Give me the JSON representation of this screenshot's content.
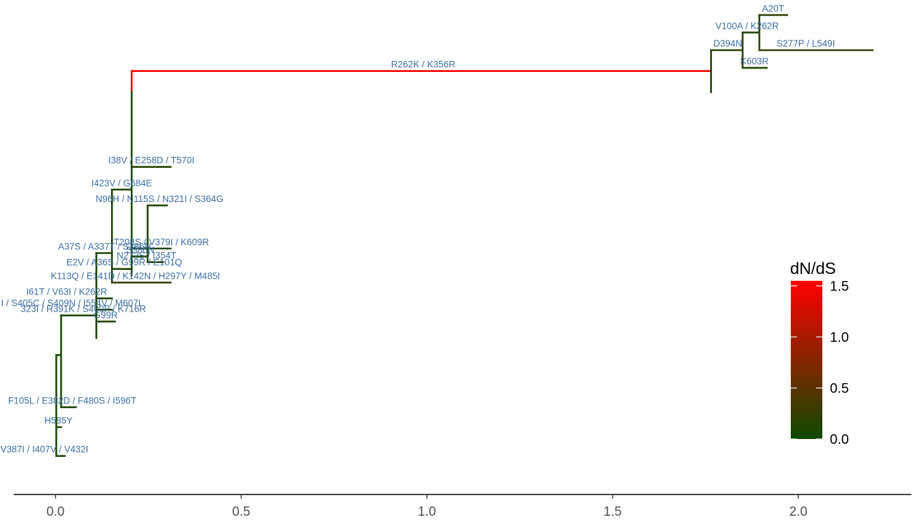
{
  "chart_data": {
    "type": "phylogenetic-tree",
    "x_ticks": [
      "0.0",
      "0.5",
      "1.0",
      "1.5",
      "2.0"
    ],
    "x_tick_values": [
      0.0,
      0.5,
      1.0,
      1.5,
      2.0
    ],
    "xlim": [
      -0.11,
      2.3
    ],
    "legend": {
      "title": "dN/dS",
      "ticks": [
        "1.5",
        "1.0",
        "0.5",
        "0.0"
      ],
      "tick_values": [
        1.5,
        1.0,
        0.5,
        0.0
      ],
      "range": [
        0,
        1.55
      ],
      "low_color": "#0d4a00",
      "high_color": "#ff0000",
      "placement": "right"
    },
    "tip_rows": 23,
    "segments": [
      {
        "id": "h_main",
        "x0": 0.205,
        "x1": 1.765,
        "y": 20.13,
        "dnds": 1.52,
        "label": "R262K / K356R",
        "label_x": 0.99
      },
      {
        "id": "v_root_upper",
        "x": 0.205,
        "y0": 19.2,
        "y1": 20.13,
        "dnds": 1.52
      },
      {
        "id": "v_root_lower",
        "x": 0.205,
        "y0": 11.1,
        "y1": 19.2,
        "dnds": 0.05
      },
      {
        "id": "v_clade",
        "x": 1.765,
        "y0": 19.2,
        "y1": 21.05,
        "dnds": 0.1
      },
      {
        "id": "h_d394n",
        "x0": 1.765,
        "x1": 1.85,
        "y": 21.05,
        "dnds": 0.18,
        "label": "D394N",
        "label_x": 1.81
      },
      {
        "id": "v_d394n",
        "x": 1.85,
        "y0": 20.27,
        "y1": 21.83,
        "dnds": 0.18
      },
      {
        "id": "h_k603r",
        "x0": 1.85,
        "x1": 1.915,
        "y": 20.27,
        "dnds": 0.1,
        "label": "K603R",
        "label_x": 1.882
      },
      {
        "id": "h_v100a",
        "x0": 1.85,
        "x1": 1.895,
        "y": 21.83,
        "dnds": 0.12,
        "label": "V100A / K262R",
        "label_x": 1.862
      },
      {
        "id": "v_v100a",
        "x": 1.895,
        "y0": 21.05,
        "y1": 22.6,
        "dnds": 0.12
      },
      {
        "id": "h_a20t",
        "x0": 1.895,
        "x1": 1.97,
        "y": 22.6,
        "dnds": 0.2,
        "label": "A20T",
        "label_x": 1.932
      },
      {
        "id": "h_s277p",
        "x0": 1.895,
        "x1": 2.2,
        "y": 21.05,
        "dnds": 0.28,
        "label": "S277P / L549I",
        "label_x": 2.02
      },
      {
        "id": "h_i38v",
        "x0": 0.205,
        "x1": 0.31,
        "y": 15.9,
        "dnds": 0.12,
        "label": "I38V / E258D / T570I",
        "label_x": 0.258
      },
      {
        "id": "h_i423v",
        "x0": 0.152,
        "x1": 0.205,
        "y": 14.9,
        "dnds": 0.1,
        "label": "I423V / G684E",
        "label_x": 0.178
      },
      {
        "id": "v_i423v",
        "x": 0.152,
        "y0": 10.8,
        "y1": 14.9,
        "dnds": 0.08
      },
      {
        "id": "h_n96h",
        "x0": 0.248,
        "x1": 0.3,
        "y": 14.2,
        "dnds": 0.15,
        "label": "N96H / N115S / N321I / S364G",
        "label_x": 0.28
      },
      {
        "id": "v_n96h",
        "x": 0.248,
        "y0": 11.7,
        "y1": 14.2,
        "dnds": 0.1
      },
      {
        "id": "h_t208s",
        "x0": 0.205,
        "x1": 0.31,
        "y": 12.3,
        "dnds": 0.12,
        "label": "T208S / V379I / K609R",
        "label_x": 0.285
      },
      {
        "id": "h_s386n",
        "x0": 0.205,
        "x1": 0.248,
        "y": 11.95,
        "dnds": 0.1,
        "label": "S386N",
        "label_x": 0.228
      },
      {
        "id": "h_n272s",
        "x0": 0.248,
        "x1": 0.29,
        "y": 11.7,
        "dnds": 0.12,
        "label": "N272S / I354T",
        "label_x": 0.245
      },
      {
        "id": "h_a37s",
        "x0": 0.11,
        "x1": 0.152,
        "y": 12.1,
        "dnds": 0.1,
        "label": "A37S / A337T / S386N",
        "label_x": 0.132
      },
      {
        "id": "v_a37s",
        "x": 0.11,
        "y0": 8.35,
        "y1": 12.1,
        "dnds": 0.08
      },
      {
        "id": "h_e2v",
        "x0": 0.152,
        "x1": 0.205,
        "y": 11.4,
        "dnds": 0.1,
        "label": "E2V / A36S / G99R / E101Q",
        "label_x": 0.185
      },
      {
        "id": "h_k113q",
        "x0": 0.152,
        "x1": 0.31,
        "y": 10.8,
        "dnds": 0.22,
        "label": "K113Q / E141D / K142N / H297Y / M485I",
        "label_x": 0.215
      },
      {
        "id": "h_i61t",
        "x0": 0.11,
        "x1": 0.152,
        "y": 10.1,
        "dnds": 0.1,
        "label": "I61T / V63I / K262R",
        "label_x": 0.03
      },
      {
        "id": "h_s405c",
        "x0": 0.11,
        "x1": 0.152,
        "y": 9.6,
        "dnds": 0.1,
        "label": "I / S405C / S409N / I554V / M607L",
        "label_x": 0.045
      },
      {
        "id": "h_g99r",
        "x0": 0.11,
        "x1": 0.16,
        "y": 9.08,
        "dnds": 0.12,
        "label": "G99R",
        "label_x": 0.135
      },
      {
        "id": "h_l323i",
        "x0": 0.015,
        "x1": 0.11,
        "y": 9.35,
        "dnds": 0.1,
        "label": "323I / R391K / S400P / K716R",
        "label_x": 0.075
      },
      {
        "id": "v_l323i",
        "x": 0.015,
        "y0": 5.3,
        "y1": 9.35,
        "dnds": 0.06
      },
      {
        "id": "h_f105l",
        "x0": 0.015,
        "x1": 0.055,
        "y": 5.3,
        "dnds": 0.12,
        "label": "F105L / E382D / F480S / I596T",
        "label_x": 0.045
      },
      {
        "id": "h_inner",
        "x0": 0.002,
        "x1": 0.015,
        "y": 7.6,
        "dnds": 0.06
      },
      {
        "id": "v_inner",
        "x": 0.002,
        "y0": 3.15,
        "y1": 7.6,
        "dnds": 0.06
      },
      {
        "id": "h_h585y",
        "x0": 0.002,
        "x1": 0.015,
        "y": 4.42,
        "dnds": 0.1,
        "label": "H585Y",
        "label_x": 0.008
      },
      {
        "id": "h_v387i",
        "x0": 0.002,
        "x1": 0.025,
        "y": 3.15,
        "dnds": 0.1,
        "label": "V387I / I407V / V432I",
        "label_x": -0.03
      }
    ]
  }
}
